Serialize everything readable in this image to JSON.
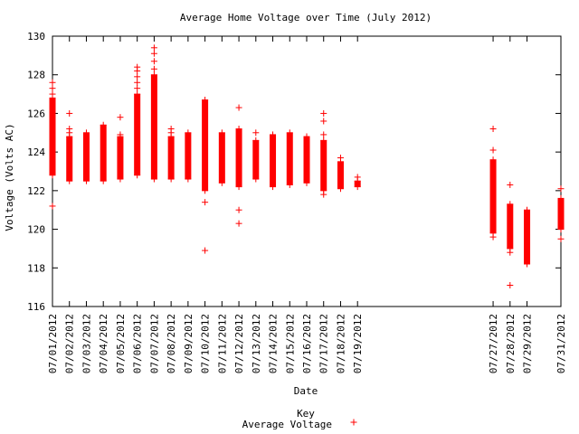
{
  "chart_data": {
    "type": "scatter",
    "title": "Average Home Voltage over Time (July 2012)",
    "xlabel": "Date",
    "ylabel": "Voltage (Volts AC)",
    "ylim": [
      116,
      130
    ],
    "yticks": [
      116,
      118,
      120,
      122,
      124,
      126,
      128,
      130
    ],
    "xticks": [
      "07/01/2012",
      "07/02/2012",
      "07/03/2012",
      "07/04/2012",
      "07/05/2012",
      "07/06/2012",
      "07/07/2012",
      "07/08/2012",
      "07/09/2012",
      "07/10/2012",
      "07/11/2012",
      "07/12/2012",
      "07/13/2012",
      "07/14/2012",
      "07/15/2012",
      "07/16/2012",
      "07/17/2012",
      "07/18/2012",
      "07/19/2012",
      "07/27/2012",
      "07/28/2012",
      "07/29/2012",
      "07/31/2012"
    ],
    "xlim_days": [
      1,
      31
    ],
    "grid": false,
    "marker": "+",
    "color": "#ff0000",
    "legend": {
      "title": "Key",
      "position": "bottom-center",
      "entries": [
        "Average Voltage"
      ]
    },
    "series": [
      {
        "name": "Average Voltage",
        "days": [
          {
            "day": 1,
            "low": 122.8,
            "high": 126.8,
            "extra": [
              127.0,
              127.3,
              127.6,
              121.2
            ]
          },
          {
            "day": 2,
            "low": 122.5,
            "high": 124.8,
            "extra": [
              125.0,
              125.2,
              126.0
            ]
          },
          {
            "day": 3,
            "low": 122.5,
            "high": 125.0,
            "extra": []
          },
          {
            "day": 4,
            "low": 122.5,
            "high": 125.4,
            "extra": []
          },
          {
            "day": 5,
            "low": 122.6,
            "high": 124.8,
            "extra": [
              124.9,
              125.8
            ]
          },
          {
            "day": 6,
            "low": 122.8,
            "high": 127.0,
            "extra": [
              127.3,
              127.6,
              127.9,
              128.2,
              128.4
            ]
          },
          {
            "day": 7,
            "low": 122.6,
            "high": 128.0,
            "extra": [
              128.3,
              128.7,
              129.1,
              129.4
            ]
          },
          {
            "day": 8,
            "low": 122.6,
            "high": 124.8,
            "extra": [
              125.0,
              125.2
            ]
          },
          {
            "day": 9,
            "low": 122.6,
            "high": 125.0,
            "extra": []
          },
          {
            "day": 10,
            "low": 122.0,
            "high": 126.7,
            "extra": [
              121.4,
              118.9
            ]
          },
          {
            "day": 11,
            "low": 122.4,
            "high": 125.0,
            "extra": []
          },
          {
            "day": 12,
            "low": 122.2,
            "high": 125.2,
            "extra": [
              121.0,
              120.3,
              126.3
            ]
          },
          {
            "day": 13,
            "low": 122.6,
            "high": 124.6,
            "extra": [
              125.0
            ]
          },
          {
            "day": 14,
            "low": 122.2,
            "high": 124.9,
            "extra": []
          },
          {
            "day": 15,
            "low": 122.3,
            "high": 125.0,
            "extra": []
          },
          {
            "day": 16,
            "low": 122.4,
            "high": 124.8,
            "extra": []
          },
          {
            "day": 17,
            "low": 122.0,
            "high": 124.6,
            "extra": [
              121.8,
              124.9,
              125.6,
              126.0
            ]
          },
          {
            "day": 18,
            "low": 122.1,
            "high": 123.5,
            "extra": [
              123.7
            ]
          },
          {
            "day": 19,
            "low": 122.2,
            "high": 122.5,
            "extra": [
              122.7
            ]
          },
          {
            "day": 27,
            "low": 119.8,
            "high": 123.6,
            "extra": [
              119.6,
              124.1,
              125.2
            ]
          },
          {
            "day": 28,
            "low": 119.0,
            "high": 121.3,
            "extra": [
              118.8,
              122.3,
              117.1
            ]
          },
          {
            "day": 29,
            "low": 118.2,
            "high": 121.0,
            "extra": []
          },
          {
            "day": 31,
            "low": 120.0,
            "high": 121.6,
            "extra": [
              119.5,
              122.1
            ]
          }
        ]
      }
    ]
  }
}
